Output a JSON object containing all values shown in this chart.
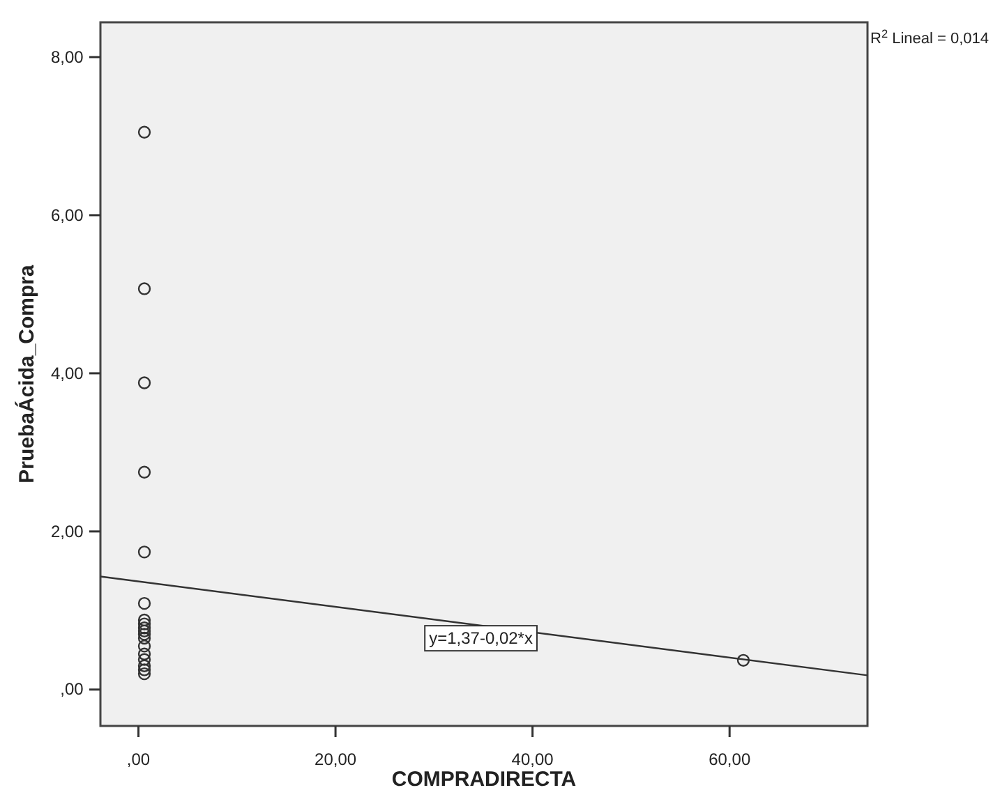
{
  "chart_data": {
    "type": "scatter",
    "xlabel": "COMPRADIRECTA",
    "ylabel": "PruebaÁcida_Compra",
    "xlim": [
      -3.86,
      74.0
    ],
    "ylim": [
      -0.46,
      8.44
    ],
    "xticks": [
      {
        "value": 0,
        "label": ",00"
      },
      {
        "value": 20,
        "label": "20,00"
      },
      {
        "value": 40,
        "label": "40,00"
      },
      {
        "value": 60,
        "label": "60,00"
      }
    ],
    "yticks": [
      {
        "value": 0,
        "label": ",00"
      },
      {
        "value": 2,
        "label": "2,00"
      },
      {
        "value": 4,
        "label": "4,00"
      },
      {
        "value": 6,
        "label": "6,00"
      },
      {
        "value": 8,
        "label": "8,00"
      }
    ],
    "marker": "circle",
    "grid": false,
    "series": [
      {
        "color": "#333333",
        "x": [
          0.6,
          0.6,
          0.6,
          0.6,
          0.6,
          0.6,
          0.6,
          0.6,
          0.6,
          0.6,
          0.6,
          0.6,
          0.6,
          0.6,
          0.6,
          0.6,
          0.6,
          0.6,
          61.4
        ],
        "values": [
          7.05,
          5.07,
          3.88,
          2.75,
          1.74,
          1.09,
          0.88,
          0.83,
          0.78,
          0.74,
          0.7,
          0.65,
          0.55,
          0.45,
          0.38,
          0.3,
          0.25,
          0.2,
          0.37
        ]
      },
      {
        "type": "line",
        "marker": "none",
        "color": "#333333",
        "x": [
          -3.86,
          74.0
        ],
        "values": [
          1.43,
          0.18
        ]
      }
    ],
    "annotations": [
      "y=1,37-0,02*x",
      "R$^{2}$ Lineal = 0,014"
    ]
  }
}
